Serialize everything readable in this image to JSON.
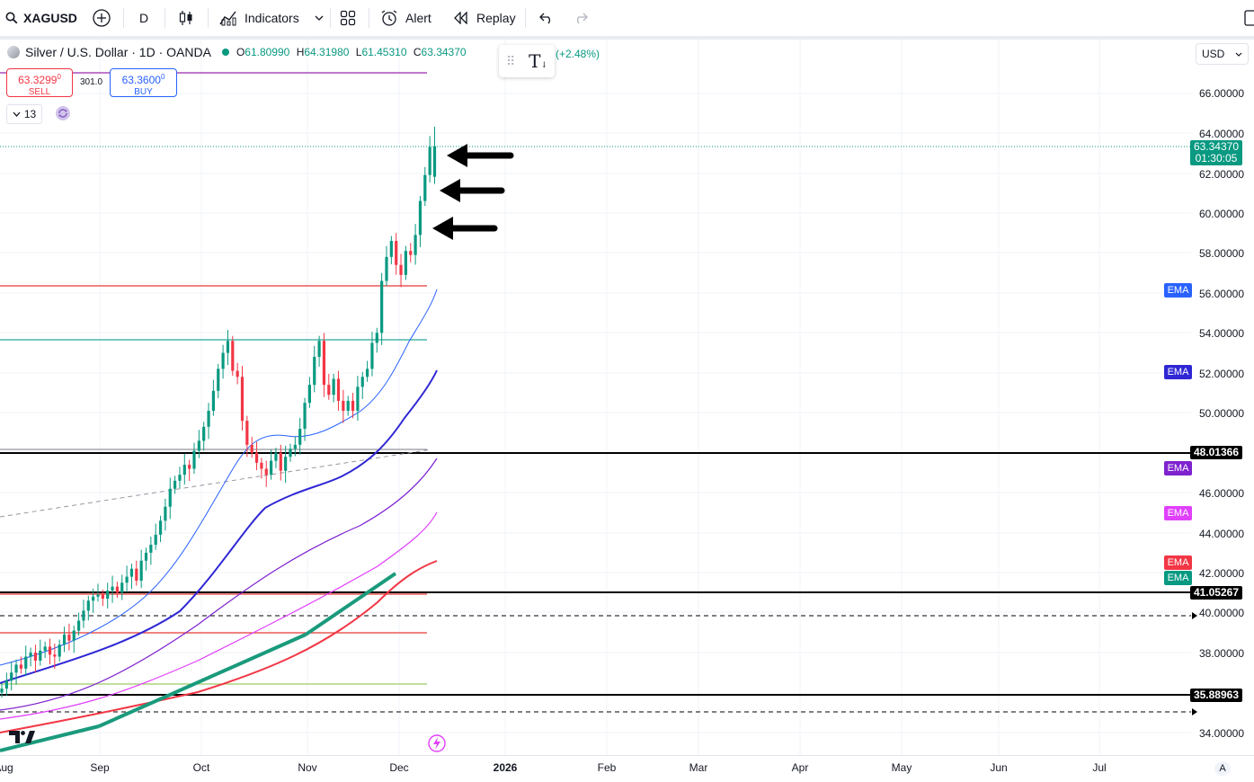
{
  "toolbar": {
    "symbol": "XAGUSD",
    "interval": "D",
    "indicators_label": "Indicators",
    "alert_label": "Alert",
    "replay_label": "Replay"
  },
  "legend": {
    "title": "Silver / U.S. Dollar · 1D · OANDA",
    "open_label": "O",
    "open": "61.80990",
    "high_label": "H",
    "high": "64.31980",
    "low_label": "L",
    "low": "61.45310",
    "close_label": "C",
    "close": "63.34370",
    "change": "(+2.48%)"
  },
  "trade": {
    "sell_price": "63.3299",
    "sell_price_small": "0",
    "sell_label": "SELL",
    "spread": "301.0",
    "buy_price": "63.3600",
    "buy_price_small": "0",
    "buy_label": "BUY"
  },
  "indicators_count": "13",
  "currency": "USD",
  "price_axis": {
    "ticks": [
      "66.00000",
      "64.00000",
      "62.00000",
      "60.00000",
      "58.00000",
      "56.00000",
      "54.00000",
      "52.00000",
      "50.00000",
      "46.00000",
      "44.00000",
      "42.00000",
      "40.00000",
      "38.00000",
      "34.00000"
    ],
    "last_price": "63.34370",
    "countdown": "01:30:05",
    "level_labels": [
      "48.01366",
      "41.05267",
      "35.88963"
    ],
    "scale_mode": "A"
  },
  "time_axis": {
    "labels": [
      "Aug",
      "Sep",
      "Oct",
      "Nov",
      "Dec",
      "2026",
      "Feb",
      "Mar",
      "Apr",
      "May",
      "Jun",
      "Jul"
    ]
  },
  "ema_tags": [
    {
      "label": "EMA",
      "color": "#2962ff"
    },
    {
      "label": "EMA",
      "color": "#2f27d4"
    },
    {
      "label": "EMA",
      "color": "#7e22ce"
    },
    {
      "label": "EMA",
      "color": "#e040fb"
    },
    {
      "label": "EMA",
      "color": "#f23645"
    },
    {
      "label": "EMA",
      "color": "#089981"
    }
  ],
  "colors": {
    "up": "#089981",
    "down": "#f23645",
    "ema_fast": "#2962ff",
    "ema_mid": "#2f27d4",
    "ema_slow": "#7e22ce",
    "ema_slower": "#e040fb",
    "ema_slowest": "#f23645",
    "trendline": "#1a9a7c"
  },
  "chart_data": {
    "type": "candlestick",
    "symbol": "XAGUSD",
    "timeframe": "1D",
    "last_candle": {
      "open": 61.8099,
      "high": 64.3198,
      "low": 61.4531,
      "close": 63.3437
    },
    "horizontal_levels": [
      48.01366,
      41.05267,
      35.88963
    ]
  }
}
